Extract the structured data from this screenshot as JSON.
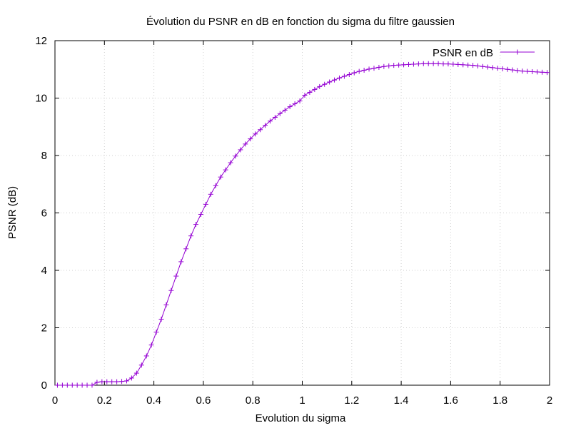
{
  "chart_data": {
    "type": "line",
    "title": "Évolution du PSNR en dB en fonction du sigma du filtre gaussien",
    "xlabel": "Evolution du sigma",
    "ylabel": "PSNR (dB)",
    "xlim": [
      0,
      2
    ],
    "ylim": [
      0,
      12
    ],
    "x_ticks": [
      "0",
      "0.2",
      "0.4",
      "0.6",
      "0.8",
      "1",
      "1.2",
      "1.4",
      "1.6",
      "1.8",
      "2"
    ],
    "y_ticks": [
      "0",
      "2",
      "4",
      "6",
      "8",
      "10",
      "12"
    ],
    "grid": true,
    "legend_position": "top-right",
    "series": [
      {
        "name": "PSNR en dB",
        "color": "#9400d3",
        "marker": "plus",
        "x": [
          0.01,
          0.03,
          0.05,
          0.07,
          0.09,
          0.11,
          0.13,
          0.15,
          0.17,
          0.19,
          0.21,
          0.23,
          0.25,
          0.27,
          0.29,
          0.31,
          0.33,
          0.35,
          0.37,
          0.39,
          0.41,
          0.43,
          0.45,
          0.47,
          0.49,
          0.51,
          0.53,
          0.55,
          0.57,
          0.59,
          0.61,
          0.63,
          0.65,
          0.67,
          0.69,
          0.71,
          0.73,
          0.75,
          0.77,
          0.79,
          0.81,
          0.83,
          0.85,
          0.87,
          0.89,
          0.91,
          0.93,
          0.95,
          0.97,
          0.99,
          1.01,
          1.03,
          1.05,
          1.07,
          1.09,
          1.11,
          1.13,
          1.15,
          1.17,
          1.19,
          1.21,
          1.23,
          1.25,
          1.27,
          1.29,
          1.31,
          1.33,
          1.35,
          1.37,
          1.39,
          1.41,
          1.43,
          1.45,
          1.47,
          1.49,
          1.51,
          1.53,
          1.55,
          1.57,
          1.59,
          1.61,
          1.63,
          1.65,
          1.67,
          1.69,
          1.71,
          1.73,
          1.75,
          1.77,
          1.79,
          1.81,
          1.83,
          1.85,
          1.87,
          1.89,
          1.91,
          1.93,
          1.95,
          1.97,
          1.99
        ],
        "y": [
          0,
          0,
          0,
          0,
          0,
          0,
          0,
          0,
          0.1,
          0.12,
          0.12,
          0.12,
          0.12,
          0.13,
          0.15,
          0.25,
          0.42,
          0.7,
          1.02,
          1.4,
          1.85,
          2.3,
          2.8,
          3.3,
          3.8,
          4.3,
          4.75,
          5.2,
          5.6,
          5.95,
          6.3,
          6.65,
          6.95,
          7.25,
          7.5,
          7.75,
          7.98,
          8.2,
          8.4,
          8.58,
          8.75,
          8.9,
          9.05,
          9.2,
          9.33,
          9.46,
          9.58,
          9.7,
          9.8,
          9.9,
          10.1,
          10.2,
          10.3,
          10.4,
          10.48,
          10.56,
          10.63,
          10.7,
          10.76,
          10.82,
          10.88,
          10.93,
          10.97,
          11.01,
          11.04,
          11.07,
          11.1,
          11.12,
          11.14,
          11.15,
          11.16,
          11.17,
          11.18,
          11.19,
          11.2,
          11.2,
          11.2,
          11.2,
          11.19,
          11.19,
          11.18,
          11.17,
          11.16,
          11.15,
          11.14,
          11.12,
          11.1,
          11.08,
          11.06,
          11.04,
          11.02,
          11.0,
          10.98,
          10.96,
          10.94,
          10.93,
          10.92,
          10.91,
          10.9,
          10.89
        ]
      }
    ]
  }
}
